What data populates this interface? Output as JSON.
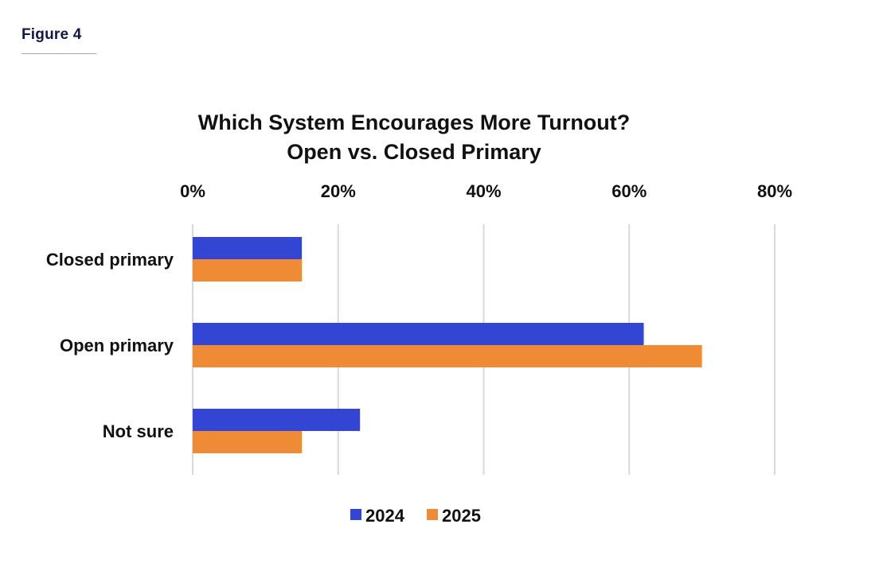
{
  "figure_label": "Figure 4",
  "colors": {
    "series_2024": "#3346d3",
    "series_2025": "#ef8a35",
    "grid": "#d9d9d9",
    "accent_rule": "#d9a441"
  },
  "chart_data": {
    "type": "bar",
    "orientation": "horizontal",
    "title_lines": [
      "Which System Encourages More Turnout?",
      "Open vs. Closed Primary"
    ],
    "categories": [
      "Closed primary",
      "Open primary",
      "Not sure"
    ],
    "series": [
      {
        "name": "2024",
        "values": [
          15,
          62,
          23
        ]
      },
      {
        "name": "2025",
        "values": [
          15,
          70,
          15
        ]
      }
    ],
    "xlim": [
      0,
      80
    ],
    "x_ticks": [
      0,
      20,
      40,
      60,
      80
    ],
    "x_tick_labels": [
      "0%",
      "20%",
      "40%",
      "60%",
      "80%"
    ],
    "x_axis_position": "top",
    "grid": true,
    "legend_position": "bottom-center",
    "unit": "%"
  }
}
